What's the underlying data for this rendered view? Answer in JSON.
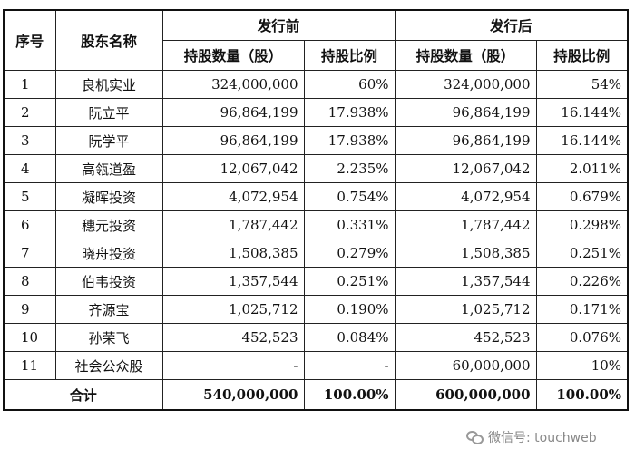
{
  "header": {
    "col_index": "序号",
    "col_name": "股东名称",
    "group_before": "发行前",
    "group_after": "发行后",
    "shares_label": "持股数量（股）",
    "ratio_label": "持股比例"
  },
  "rows": [
    {
      "index": "1",
      "name": "良机实业",
      "shares_before": "324,000,000",
      "ratio_before": "60%",
      "shares_after": "324,000,000",
      "ratio_after": "54%"
    },
    {
      "index": "2",
      "name": "阮立平",
      "shares_before": "96,864,199",
      "ratio_before": "17.938%",
      "shares_after": "96,864,199",
      "ratio_after": "16.144%"
    },
    {
      "index": "3",
      "name": "阮学平",
      "shares_before": "96,864,199",
      "ratio_before": "17.938%",
      "shares_after": "96,864,199",
      "ratio_after": "16.144%"
    },
    {
      "index": "4",
      "name": "高瓴道盈",
      "shares_before": "12,067,042",
      "ratio_before": "2.235%",
      "shares_after": "12,067,042",
      "ratio_after": "2.011%"
    },
    {
      "index": "5",
      "name": "凝晖投资",
      "shares_before": "4,072,954",
      "ratio_before": "0.754%",
      "shares_after": "4,072,954",
      "ratio_after": "0.679%"
    },
    {
      "index": "6",
      "name": "穗元投资",
      "shares_before": "1,787,442",
      "ratio_before": "0.331%",
      "shares_after": "1,787,442",
      "ratio_after": "0.298%"
    },
    {
      "index": "7",
      "name": "晓舟投资",
      "shares_before": "1,508,385",
      "ratio_before": "0.279%",
      "shares_after": "1,508,385",
      "ratio_after": "0.251%"
    },
    {
      "index": "8",
      "name": "伯韦投资",
      "shares_before": "1,357,544",
      "ratio_before": "0.251%",
      "shares_after": "1,357,544",
      "ratio_after": "0.226%"
    },
    {
      "index": "9",
      "name": "齐源宝",
      "shares_before": "1,025,712",
      "ratio_before": "0.190%",
      "shares_after": "1,025,712",
      "ratio_after": "0.171%"
    },
    {
      "index": "10",
      "name": "孙荣飞",
      "shares_before": "452,523",
      "ratio_before": "0.084%",
      "shares_after": "452,523",
      "ratio_after": "0.076%"
    },
    {
      "index": "11",
      "name": "社会公众股",
      "shares_before": "-",
      "ratio_before": "-",
      "shares_after": "60,000,000",
      "ratio_after": "10%"
    }
  ],
  "total": {
    "label": "合计",
    "shares_before": "540,000,000",
    "ratio_before": "100.00%",
    "shares_after": "600,000,000",
    "ratio_after": "100.00%"
  },
  "watermark": {
    "text": "微信号: touchweb",
    "icon": "wechat-icon"
  }
}
